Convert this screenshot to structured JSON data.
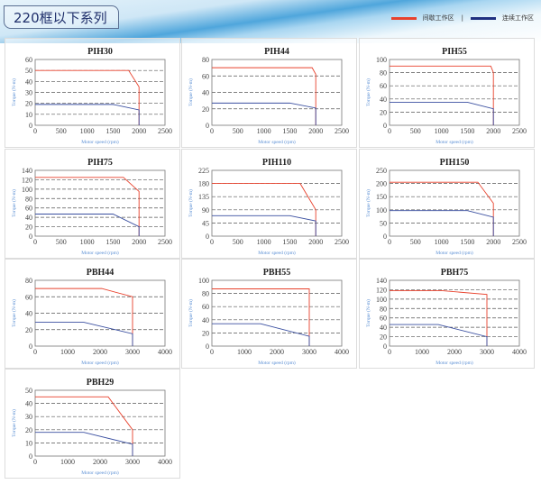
{
  "header": {
    "title": "220框以下系列"
  },
  "legend": [
    {
      "label": "间歇工作区",
      "color": "#e8412c"
    },
    {
      "label": "连续工作区",
      "color": "#1f2f80"
    }
  ],
  "colors": {
    "intermittent": "#e8412c",
    "continuous": "#3a4fa0",
    "axis_label": "#5b8fd4"
  },
  "chart_data": [
    {
      "type": "line",
      "title": "PIH30",
      "xlabel": "Motor speed (rpm)",
      "ylabel": "Torque (N-m)",
      "xlim": [
        0,
        2500
      ],
      "xticks": [
        0,
        500,
        1000,
        1500,
        2000,
        2500
      ],
      "ylim": [
        0,
        60
      ],
      "yticks": [
        0,
        10,
        20,
        30,
        40,
        50,
        60
      ],
      "grid": "dashed horizontal",
      "series": [
        {
          "name": "间歇工作区",
          "points": [
            [
              0,
              50
            ],
            [
              1800,
              50
            ],
            [
              2000,
              35
            ],
            [
              2000,
              0
            ]
          ]
        },
        {
          "name": "连续工作区",
          "points": [
            [
              0,
              19
            ],
            [
              1500,
              19
            ],
            [
              2000,
              14
            ],
            [
              2000,
              0
            ]
          ]
        }
      ]
    },
    {
      "type": "line",
      "title": "PIH44",
      "xlabel": "Motor speed (rpm)",
      "ylabel": "Torque (N-m)",
      "xlim": [
        0,
        2500
      ],
      "xticks": [
        0,
        500,
        1000,
        1500,
        2000,
        2500
      ],
      "ylim": [
        0,
        80
      ],
      "yticks": [
        0,
        20,
        40,
        60,
        80
      ],
      "grid": "dashed horizontal",
      "series": [
        {
          "name": "间歇工作区",
          "points": [
            [
              0,
              70
            ],
            [
              1930,
              70
            ],
            [
              2000,
              62
            ],
            [
              2000,
              0
            ]
          ]
        },
        {
          "name": "连续工作区",
          "points": [
            [
              0,
              27
            ],
            [
              1500,
              27
            ],
            [
              2000,
              21
            ],
            [
              2000,
              0
            ]
          ]
        }
      ]
    },
    {
      "type": "line",
      "title": "PIH55",
      "xlabel": "Motor speed (rpm)",
      "ylabel": "Torque (N-m)",
      "xlim": [
        0,
        2500
      ],
      "xticks": [
        0,
        500,
        1000,
        1500,
        2000,
        2500
      ],
      "ylim": [
        0,
        100
      ],
      "yticks": [
        0,
        20,
        40,
        60,
        80,
        100
      ],
      "grid": "dashed horizontal",
      "series": [
        {
          "name": "间歇工作区",
          "points": [
            [
              0,
              90
            ],
            [
              1950,
              90
            ],
            [
              2000,
              80
            ],
            [
              2000,
              0
            ]
          ]
        },
        {
          "name": "连续工作区",
          "points": [
            [
              0,
              35
            ],
            [
              1500,
              35
            ],
            [
              2000,
              25
            ],
            [
              2000,
              0
            ]
          ]
        }
      ]
    },
    {
      "type": "line",
      "title": "PIH75",
      "xlabel": "Motor speed (rpm)",
      "ylabel": "Torque (N-m)",
      "xlim": [
        0,
        2500
      ],
      "xticks": [
        0,
        500,
        1000,
        1500,
        2000,
        2500
      ],
      "ylim": [
        0,
        140
      ],
      "yticks": [
        0,
        20,
        40,
        60,
        80,
        100,
        120,
        140
      ],
      "grid": "dashed horizontal",
      "series": [
        {
          "name": "间歇工作区",
          "points": [
            [
              0,
              125
            ],
            [
              1700,
              125
            ],
            [
              2000,
              95
            ],
            [
              2000,
              0
            ]
          ]
        },
        {
          "name": "连续工作区",
          "points": [
            [
              0,
              47
            ],
            [
              1500,
              47
            ],
            [
              2000,
              20
            ],
            [
              2000,
              0
            ]
          ]
        }
      ]
    },
    {
      "type": "line",
      "title": "PIH110",
      "xlabel": "Motor speed (rpm)",
      "ylabel": "Torque (N-m)",
      "xlim": [
        0,
        2500
      ],
      "xticks": [
        0,
        500,
        1000,
        1500,
        2000,
        2500
      ],
      "ylim": [
        0,
        225
      ],
      "yticks": [
        0,
        45,
        90,
        135,
        180,
        225
      ],
      "grid": "dashed horizontal",
      "series": [
        {
          "name": "间歇工作区",
          "points": [
            [
              0,
              180
            ],
            [
              1700,
              180
            ],
            [
              2000,
              90
            ],
            [
              2000,
              0
            ]
          ]
        },
        {
          "name": "连续工作区",
          "points": [
            [
              0,
              70
            ],
            [
              1500,
              70
            ],
            [
              2000,
              52
            ],
            [
              2000,
              0
            ]
          ]
        }
      ]
    },
    {
      "type": "line",
      "title": "PIH150",
      "xlabel": "Motor speed (rpm)",
      "ylabel": "Torque (N-m)",
      "xlim": [
        0,
        2500
      ],
      "xticks": [
        0,
        500,
        1000,
        1500,
        2000,
        2500
      ],
      "ylim": [
        0,
        250
      ],
      "yticks": [
        0,
        50,
        100,
        150,
        200,
        250
      ],
      "grid": "dashed horizontal",
      "series": [
        {
          "name": "间歇工作区",
          "points": [
            [
              0,
              205
            ],
            [
              1700,
              205
            ],
            [
              2000,
              125
            ],
            [
              2000,
              0
            ]
          ]
        },
        {
          "name": "连续工作区",
          "points": [
            [
              0,
              97
            ],
            [
              1500,
              97
            ],
            [
              2000,
              72
            ],
            [
              2000,
              0
            ]
          ]
        }
      ]
    },
    {
      "type": "line",
      "title": "PBH44",
      "xlabel": "Motor speed (rpm)",
      "ylabel": "Torque (N-m)",
      "xlim": [
        0,
        4000
      ],
      "xticks": [
        0,
        1000,
        2000,
        3000,
        4000
      ],
      "ylim": [
        0,
        80
      ],
      "yticks": [
        0,
        20,
        40,
        60,
        80
      ],
      "grid": "dashed horizontal",
      "series": [
        {
          "name": "间歇工作区",
          "points": [
            [
              0,
              70
            ],
            [
              2050,
              70
            ],
            [
              3000,
              60
            ],
            [
              3000,
              0
            ]
          ]
        },
        {
          "name": "连续工作区",
          "points": [
            [
              0,
              29
            ],
            [
              1500,
              29
            ],
            [
              3000,
              15
            ],
            [
              3000,
              0
            ]
          ]
        }
      ]
    },
    {
      "type": "line",
      "title": "PBH55",
      "xlabel": "Motor speed (rpm)",
      "ylabel": "Torque (N-m)",
      "xlim": [
        0,
        4000
      ],
      "xticks": [
        0,
        1000,
        2000,
        3000,
        4000
      ],
      "ylim": [
        0,
        100
      ],
      "yticks": [
        0,
        20,
        40,
        60,
        80,
        100
      ],
      "grid": "dashed horizontal",
      "series": [
        {
          "name": "间歇工作区",
          "points": [
            [
              0,
              87
            ],
            [
              3000,
              87
            ],
            [
              3000,
              0
            ]
          ]
        },
        {
          "name": "连续工作区",
          "points": [
            [
              0,
              34
            ],
            [
              1500,
              34
            ],
            [
              3000,
              15
            ],
            [
              3000,
              0
            ]
          ]
        }
      ]
    },
    {
      "type": "line",
      "title": "PBH75",
      "xlabel": "Motor speed (rpm)",
      "ylabel": "Torque (N-m)",
      "xlim": [
        0,
        4000
      ],
      "xticks": [
        0,
        1000,
        2000,
        3000,
        4000
      ],
      "ylim": [
        0,
        140
      ],
      "yticks": [
        0,
        20,
        40,
        60,
        80,
        100,
        120,
        140
      ],
      "grid": "dashed horizontal",
      "series": [
        {
          "name": "间歇工作区",
          "points": [
            [
              0,
              118
            ],
            [
              1600,
              118
            ],
            [
              3000,
              110
            ],
            [
              3000,
              0
            ]
          ]
        },
        {
          "name": "连续工作区",
          "points": [
            [
              0,
              46
            ],
            [
              1500,
              46
            ],
            [
              3000,
              20
            ],
            [
              3000,
              0
            ]
          ]
        }
      ]
    },
    {
      "type": "line",
      "title": "PBH29",
      "xlabel": "Motor speed (rpm)",
      "ylabel": "Torque (N-m)",
      "xlim": [
        0,
        4000
      ],
      "xticks": [
        0,
        1000,
        2000,
        3000,
        4000
      ],
      "ylim": [
        0,
        50
      ],
      "yticks": [
        0,
        10,
        20,
        30,
        40,
        50
      ],
      "grid": "dashed horizontal",
      "series": [
        {
          "name": "间歇工作区",
          "points": [
            [
              0,
              45
            ],
            [
              2250,
              45
            ],
            [
              3000,
              20
            ],
            [
              3000,
              0
            ]
          ]
        },
        {
          "name": "连续工作区",
          "points": [
            [
              0,
              18
            ],
            [
              1500,
              18
            ],
            [
              3000,
              9
            ],
            [
              3000,
              0
            ]
          ]
        }
      ]
    }
  ]
}
